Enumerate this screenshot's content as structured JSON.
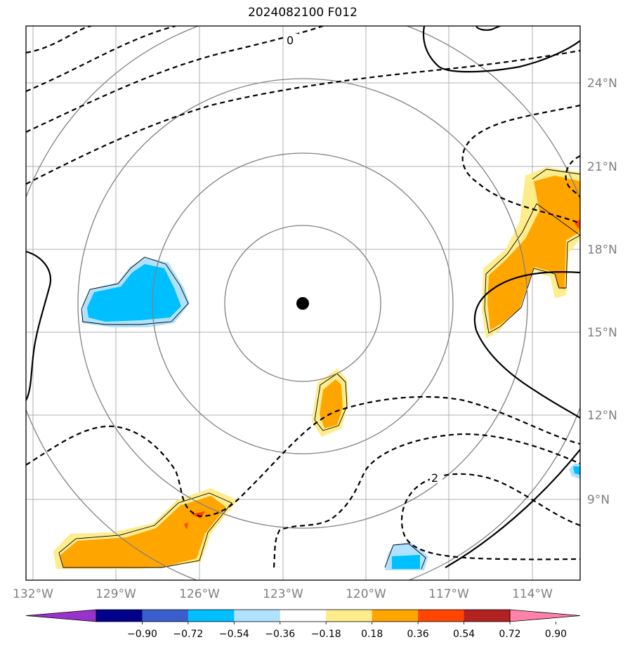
{
  "title": "2024082100 F012",
  "map": {
    "lon_labels": [
      "132°W",
      "129°W",
      "126°W",
      "123°W",
      "120°W",
      "117°W",
      "114°W"
    ],
    "lat_labels": [
      "24°N",
      "21°N",
      "18°N",
      "15°N",
      "12°N",
      "9°N"
    ],
    "contour_labels": [
      "0",
      "2"
    ],
    "center_marker": "storm-center-dot"
  },
  "colorbar": {
    "labels": [
      "−0.90",
      "−0.72",
      "−0.54",
      "−0.36",
      "−0.18",
      "0.18",
      "0.36",
      "0.54",
      "0.72",
      "0.90"
    ],
    "colors": [
      "#9932cc",
      "#00008b",
      "#3a5fcd",
      "#00bfff",
      "#b0e2ff",
      "#ffffff",
      "#ffec8b",
      "#ffa500",
      "#ff4500",
      "#b22222",
      "#ff82ab"
    ]
  },
  "colors": {
    "frame": "#000000",
    "grid": "#b0b0b0",
    "range_rings": "#808080",
    "positive_fill_light": "#ffec8b",
    "positive_fill": "#ffa500",
    "positive_fill_strong": "#ff4500",
    "negative_fill_light": "#b0e2ff",
    "negative_fill": "#00bfff"
  }
}
